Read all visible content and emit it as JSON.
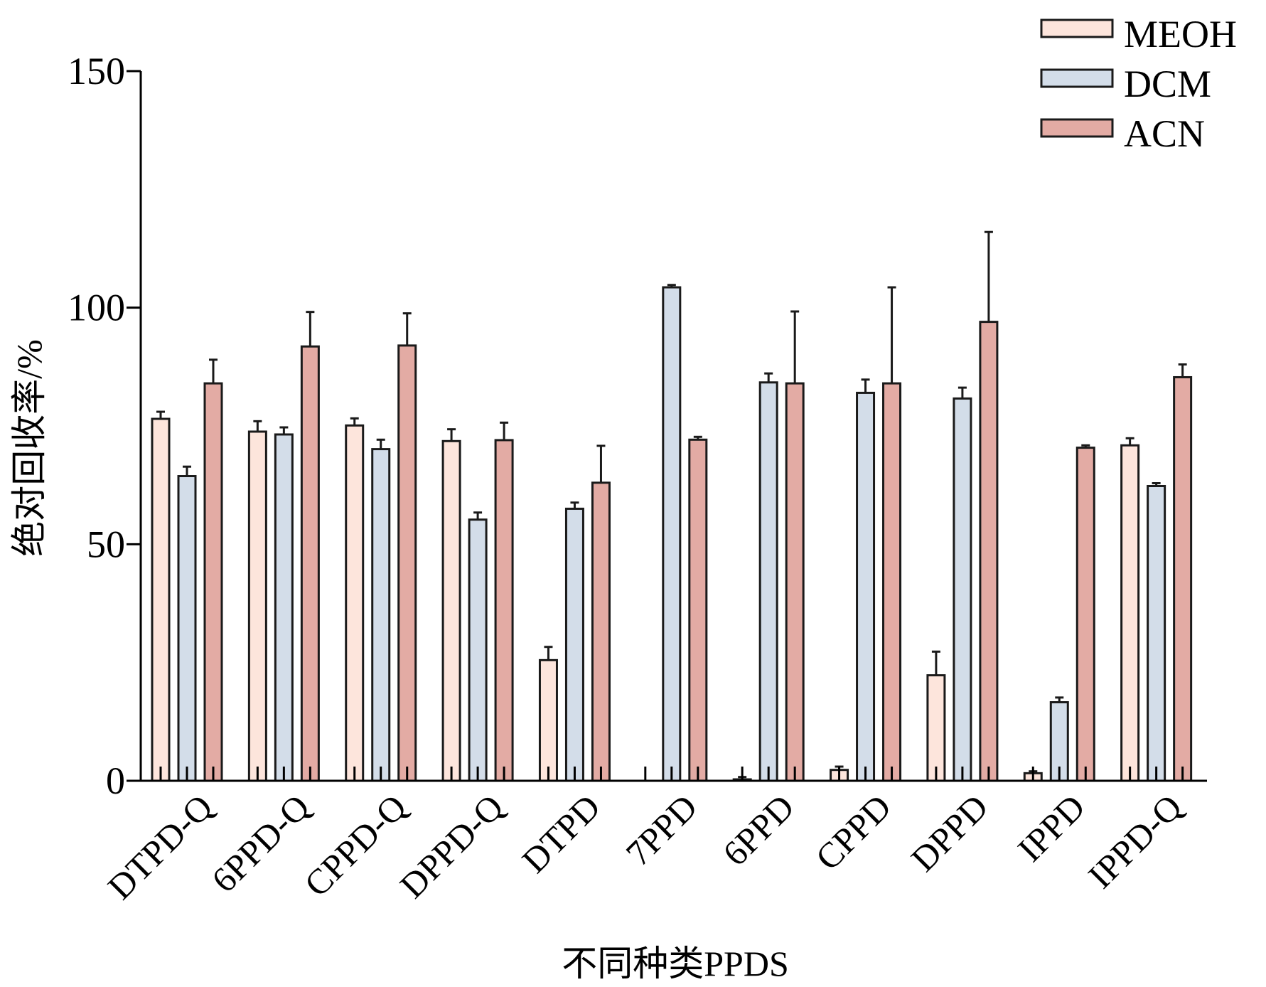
{
  "chart_data": {
    "type": "bar",
    "xlabel": "不同种类PPDS",
    "ylabel": "绝对回收率/%",
    "ylim": [
      0,
      150
    ],
    "yticks": [
      "0",
      "50",
      "100",
      "150"
    ],
    "ytick_values": [
      0,
      50,
      100,
      150
    ],
    "grid": false,
    "legend_position": "top-right",
    "categories": [
      "DTPD-Q",
      "6PPD-Q",
      "CPPD-Q",
      "DPPD-Q",
      "DTPD",
      "7PPD",
      "6PPD",
      "CPPD",
      "DPPD",
      "IPPD",
      "IPPD-Q"
    ],
    "series": [
      {
        "name": "MEOH",
        "color": "#fde5dc",
        "values": [
          76.5,
          73.8,
          75.1,
          71.8,
          25.5,
          0,
          0.3,
          2.3,
          22.3,
          1.6,
          70.9
        ],
        "errors": [
          1.5,
          2.2,
          1.5,
          2.5,
          2.8,
          0,
          0.5,
          0.7,
          5.0,
          0.4,
          1.5
        ]
      },
      {
        "name": "DCM",
        "color": "#d3dde9",
        "values": [
          64.4,
          73.2,
          70.1,
          55.2,
          57.5,
          104.3,
          84.2,
          82.0,
          80.8,
          16.6,
          62.3
        ],
        "errors": [
          2.0,
          1.5,
          2.0,
          1.5,
          1.3,
          0.5,
          1.9,
          2.8,
          2.3,
          1.0,
          0.6
        ]
      },
      {
        "name": "ACN",
        "color": "#e3aba4",
        "values": [
          84.0,
          91.8,
          92.0,
          72.0,
          63.0,
          72.1,
          84.0,
          84.0,
          97.0,
          70.4,
          85.3
        ],
        "errors": [
          5.0,
          7.3,
          6.8,
          3.7,
          7.8,
          0.6,
          15.2,
          20.3,
          19.0,
          0.5,
          2.7
        ]
      }
    ]
  }
}
